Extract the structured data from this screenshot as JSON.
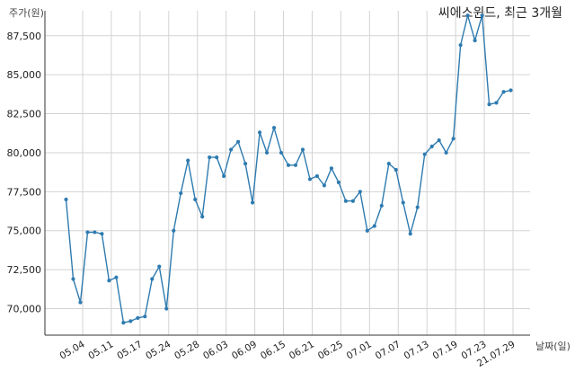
{
  "chart_data": {
    "type": "line",
    "title": "씨에스윈드, 최근 3개월",
    "ylabel": "주가(원)",
    "xlabel": "날짜(일)",
    "ylim": [
      68300,
      89100
    ],
    "yticks": [
      70000,
      72500,
      75000,
      77500,
      80000,
      82500,
      85000,
      87500
    ],
    "ytick_labels": [
      "70,000",
      "72,500",
      "75,000",
      "77,500",
      "80,000",
      "82,500",
      "85,000",
      "87,500"
    ],
    "xtick_labels": [
      "05.04",
      "05.11",
      "05.17",
      "05.24",
      "05.28",
      "06.03",
      "06.09",
      "06.15",
      "06.21",
      "06.25",
      "07.01",
      "07.07",
      "07.13",
      "07.19",
      "07.23",
      "21.07.29"
    ],
    "grid": true,
    "color": "#2e7bb0",
    "series": [
      {
        "values": [
          77000,
          71900,
          70400,
          74900,
          74900,
          74800,
          71800,
          72000,
          69100,
          69200,
          69400,
          69500,
          71900,
          72700,
          70000,
          75000,
          77400,
          79500,
          77000,
          75900,
          79700,
          79700,
          78500,
          80200,
          80700,
          79300,
          76800,
          81300,
          80000,
          81600,
          80000,
          79200,
          79200,
          80200,
          78300,
          78500,
          77900,
          79000,
          78100,
          76900,
          76900,
          77500,
          75000,
          75300,
          76600,
          79300,
          78900,
          76800,
          74800,
          76500,
          79900,
          80400,
          80800,
          80000,
          80900,
          86900,
          88800,
          87200,
          88800,
          83100,
          83200,
          83900,
          84000
        ]
      }
    ]
  }
}
